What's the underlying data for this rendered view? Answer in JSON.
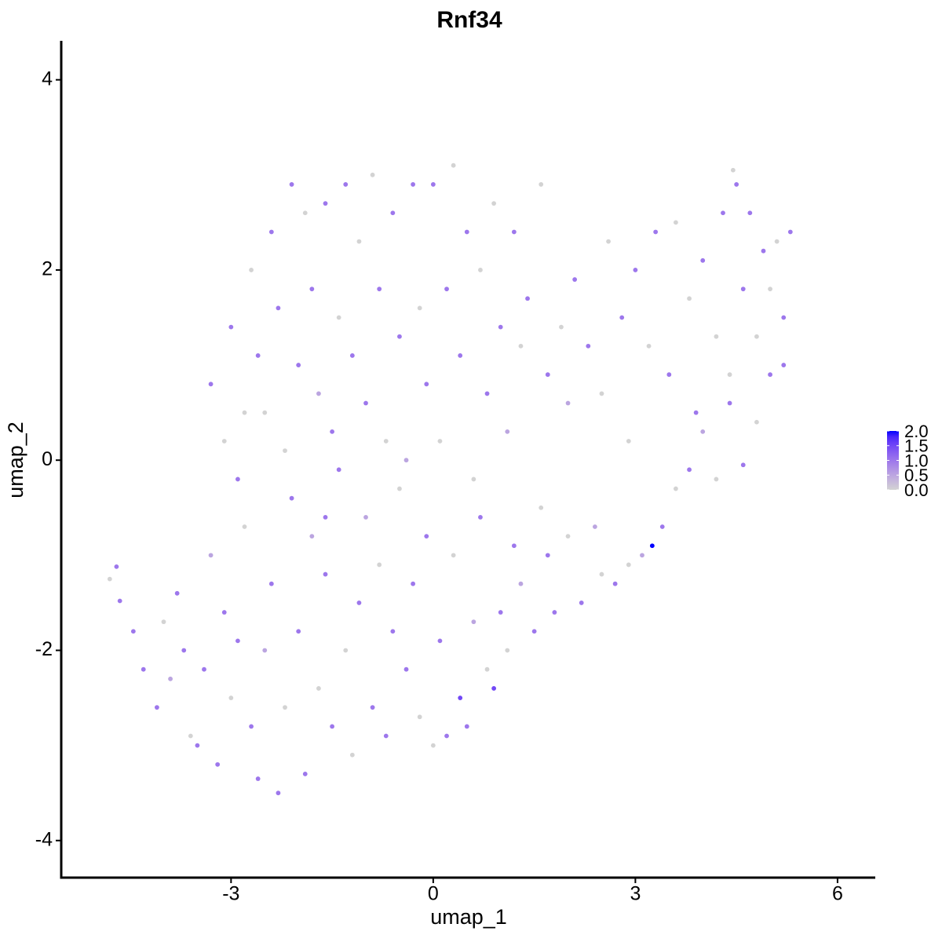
{
  "chart_data": {
    "type": "scatter",
    "title": "Rnf34",
    "xlabel": "umap_1",
    "ylabel": "umap_2",
    "xlim": [
      -5.52,
      6.56
    ],
    "ylim": [
      -4.39,
      4.41
    ],
    "xticks": [
      -3,
      0,
      3,
      6
    ],
    "yticks": [
      -4,
      -2,
      0,
      2,
      4
    ],
    "color_scale": {
      "low": "#d3d3d3",
      "high": "#0000ff",
      "lim": [
        0,
        2
      ],
      "ticks": [
        {
          "value": 2,
          "label": "2.0"
        },
        {
          "value": 1.5,
          "label": "1.5"
        },
        {
          "value": 1,
          "label": "1.0"
        },
        {
          "value": 0.5,
          "label": "0.5"
        },
        {
          "value": 0,
          "label": "0.0"
        }
      ]
    },
    "x": [
      -4.8,
      -4.7,
      -4.65,
      -4.45,
      -4.3,
      -4.1,
      -4.0,
      -3.9,
      -3.8,
      -3.7,
      -3.6,
      -3.5,
      -3.4,
      -3.3,
      -3.2,
      -3.1,
      -3.0,
      -2.9,
      -2.8,
      -2.7,
      -2.6,
      -2.5,
      -2.4,
      -2.3,
      -2.2,
      -2.1,
      -2.0,
      -1.9,
      -1.8,
      -1.7,
      -1.6,
      -1.5,
      -1.4,
      -1.3,
      -1.2,
      -1.1,
      -1.0,
      -0.9,
      -0.8,
      -0.7,
      -0.6,
      -0.5,
      -0.4,
      -0.3,
      -0.2,
      -0.1,
      0.0,
      0.1,
      0.2,
      0.3,
      0.4,
      0.5,
      0.6,
      0.7,
      0.8,
      0.9,
      1.0,
      1.1,
      1.2,
      1.3,
      1.5,
      1.6,
      1.7,
      1.8,
      2.0,
      2.2,
      2.4,
      2.5,
      2.7,
      2.9,
      3.1,
      3.25,
      3.4,
      3.6,
      3.8,
      4.0,
      4.2,
      4.4,
      4.6,
      4.8,
      5.0,
      5.2,
      -3.3,
      -3.1,
      -3.0,
      -2.9,
      -2.7,
      -2.6,
      -2.5,
      -2.4,
      -2.3,
      -2.2,
      -2.1,
      -2.0,
      -1.9,
      -1.8,
      -1.7,
      -1.6,
      -1.5,
      -1.4,
      -1.3,
      -1.2,
      -1.1,
      -1.0,
      -0.9,
      -0.8,
      -0.7,
      -0.6,
      -0.5,
      -0.4,
      -0.3,
      -0.2,
      -0.1,
      0.0,
      0.1,
      0.2,
      0.3,
      0.4,
      0.5,
      0.6,
      0.7,
      0.8,
      0.9,
      1.0,
      1.1,
      1.2,
      1.3,
      1.4,
      1.6,
      1.7,
      1.9,
      2.0,
      2.1,
      2.3,
      2.5,
      2.6,
      2.8,
      2.9,
      3.0,
      3.2,
      3.3,
      3.5,
      3.6,
      3.8,
      3.9,
      4.0,
      4.2,
      4.3,
      4.4,
      4.5,
      4.6,
      4.7,
      4.8,
      4.9,
      5.0,
      5.1,
      5.2,
      5.3,
      4.45,
      -1.6,
      -2.8
    ],
    "y": [
      -1.25,
      -1.12,
      -1.48,
      -1.8,
      -2.2,
      -2.6,
      -1.7,
      -2.3,
      -1.4,
      -2.0,
      -2.9,
      -3.0,
      -2.2,
      -1.0,
      -3.2,
      -1.6,
      -2.5,
      -1.9,
      -0.7,
      -2.8,
      -3.35,
      -2.0,
      -1.3,
      -3.5,
      -2.6,
      -0.4,
      -1.8,
      -3.3,
      -0.8,
      -2.4,
      -1.2,
      -2.8,
      -0.1,
      -2.0,
      -3.1,
      -1.5,
      -0.6,
      -2.6,
      -1.1,
      -2.9,
      -1.8,
      -0.3,
      -2.2,
      -1.3,
      -2.7,
      -0.8,
      -3.0,
      -1.9,
      -2.9,
      -1.0,
      -2.5,
      -2.8,
      -1.7,
      -0.6,
      -2.2,
      -2.4,
      -1.6,
      -2.0,
      -0.9,
      -1.3,
      -1.8,
      -0.5,
      -1.0,
      -1.6,
      -0.8,
      -1.5,
      -0.7,
      -1.2,
      -1.3,
      -1.1,
      -1.0,
      -0.9,
      -0.7,
      -0.3,
      -0.1,
      0.3,
      -0.2,
      0.6,
      -0.05,
      0.4,
      0.9,
      1.0,
      0.8,
      0.2,
      1.4,
      -0.2,
      2.0,
      1.1,
      0.5,
      2.4,
      1.6,
      0.1,
      2.9,
      1.0,
      2.6,
      1.8,
      0.7,
      2.7,
      0.3,
      1.5,
      2.9,
      1.1,
      2.3,
      0.6,
      3.0,
      1.8,
      0.2,
      2.6,
      1.3,
      0.0,
      2.9,
      1.6,
      0.8,
      2.9,
      0.2,
      1.8,
      3.1,
      1.1,
      2.4,
      -0.2,
      2.0,
      0.7,
      2.7,
      1.4,
      0.3,
      2.4,
      1.2,
      1.7,
      2.9,
      0.9,
      1.4,
      0.6,
      1.9,
      1.2,
      0.7,
      2.3,
      1.5,
      0.2,
      2.0,
      1.2,
      2.4,
      0.9,
      2.5,
      1.7,
      0.5,
      2.1,
      1.3,
      2.6,
      0.9,
      2.9,
      1.8,
      2.6,
      1.3,
      2.2,
      1.8,
      2.3,
      1.5,
      2.4,
      3.05,
      -0.6,
      0.5
    ],
    "values": [
      0,
      1,
      1,
      1,
      1,
      1,
      0,
      0.5,
      1,
      1,
      0,
      1,
      1,
      0.5,
      1,
      1,
      0,
      1,
      0,
      1,
      1,
      0.5,
      1,
      1,
      0,
      1,
      1,
      1,
      0.5,
      0,
      1,
      1,
      1,
      0,
      0,
      1,
      0.5,
      1,
      0,
      1,
      1,
      0,
      1,
      1,
      0,
      1,
      0,
      1,
      1,
      0,
      1.5,
      1,
      0.5,
      1,
      0,
      1.5,
      1,
      0,
      1,
      0.5,
      1,
      0,
      1,
      1,
      0,
      1,
      0.5,
      0,
      1,
      0,
      0.5,
      2,
      1,
      0,
      1,
      0.5,
      0,
      1,
      1,
      0,
      1,
      1,
      1,
      0,
      1,
      1,
      0,
      1,
      0,
      1,
      1,
      0,
      1,
      1,
      0,
      1,
      0.5,
      1,
      1,
      0,
      1,
      1,
      0,
      1,
      0,
      1,
      0,
      1,
      1,
      0.5,
      1,
      0,
      1,
      1,
      0,
      1,
      0,
      1,
      1,
      0,
      0,
      1,
      0,
      1,
      0.5,
      1,
      0,
      1,
      0,
      1,
      0,
      0.5,
      1,
      1,
      0,
      0,
      1,
      0,
      1,
      0,
      1,
      1,
      0,
      0,
      1,
      1,
      0,
      1,
      0,
      1,
      1,
      1,
      0,
      1,
      0,
      0,
      1,
      1,
      0,
      1,
      0
    ]
  }
}
